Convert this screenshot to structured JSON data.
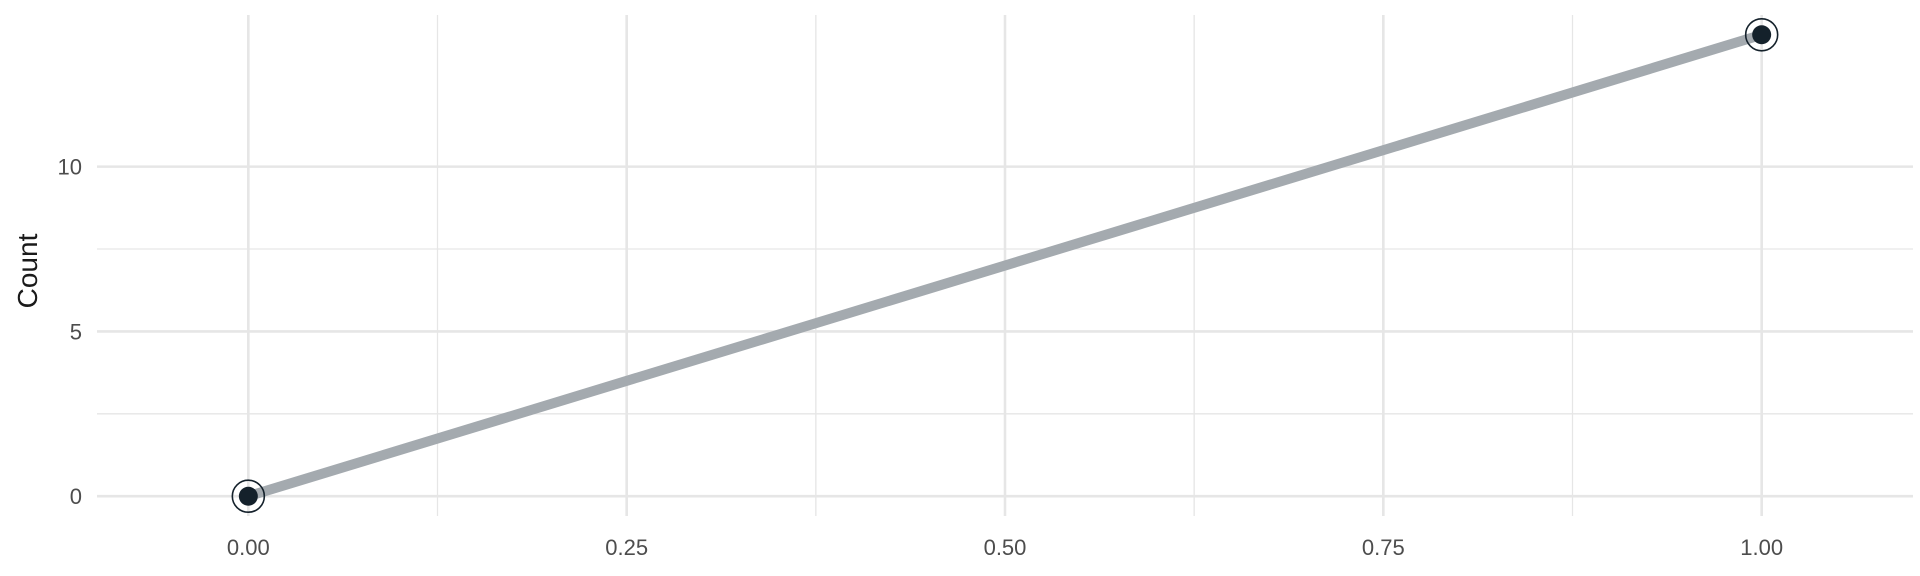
{
  "chart_data": {
    "type": "line",
    "title": "",
    "xlabel": "",
    "ylabel": "Count",
    "x": [
      0,
      1
    ],
    "series": [
      {
        "values": [
          0,
          14
        ]
      }
    ],
    "xlim": [
      -0.1,
      1.1
    ],
    "ylim": [
      -0.6,
      14.6
    ],
    "x_ticks": [
      0,
      0.25,
      0.5,
      0.75,
      1
    ],
    "x_tick_labels": [
      "0.00",
      "0.25",
      "0.50",
      "0.75",
      "1.00"
    ],
    "y_ticks": [
      0,
      5,
      10
    ],
    "y_tick_labels": [
      "0",
      "5",
      "10"
    ],
    "grid": true,
    "legend": "none",
    "colors": {
      "line": "#a4aaaf",
      "point": "#14212b",
      "grid": "#e6e6e6",
      "text": "#4d4d4d"
    }
  }
}
